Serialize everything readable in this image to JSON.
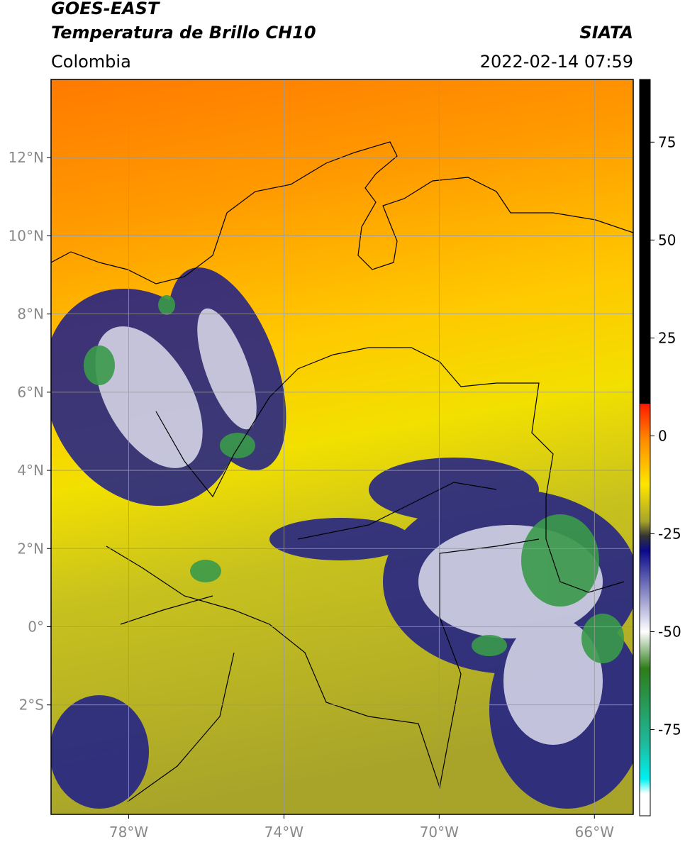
{
  "header": {
    "title": "GOES-EAST",
    "product": "Temperatura de Brillo CH10",
    "source": "SIATA",
    "region": "Colombia",
    "datetime": "2022-02-14 07:59"
  },
  "map": {
    "lon_lim": [
      -80,
      -65
    ],
    "lat_lim": [
      -4.8,
      14
    ],
    "lon_ticks": [
      {
        "value": -78,
        "label": "78°W"
      },
      {
        "value": -74,
        "label": "74°W"
      },
      {
        "value": -70,
        "label": "70°W"
      },
      {
        "value": -66,
        "label": "66°W"
      }
    ],
    "lat_ticks": [
      {
        "value": 12,
        "label": "12°N"
      },
      {
        "value": 10,
        "label": "10°N"
      },
      {
        "value": 8,
        "label": "8°N"
      },
      {
        "value": 6,
        "label": "6°N"
      },
      {
        "value": 4,
        "label": "4°N"
      },
      {
        "value": 2,
        "label": "2°N"
      },
      {
        "value": 0,
        "label": "0°"
      },
      {
        "value": -2,
        "label": "2°S"
      }
    ]
  },
  "colorbar": {
    "range": [
      -97,
      91
    ],
    "ticks": [
      75,
      50,
      25,
      0,
      -25,
      -50,
      -75
    ]
  }
}
